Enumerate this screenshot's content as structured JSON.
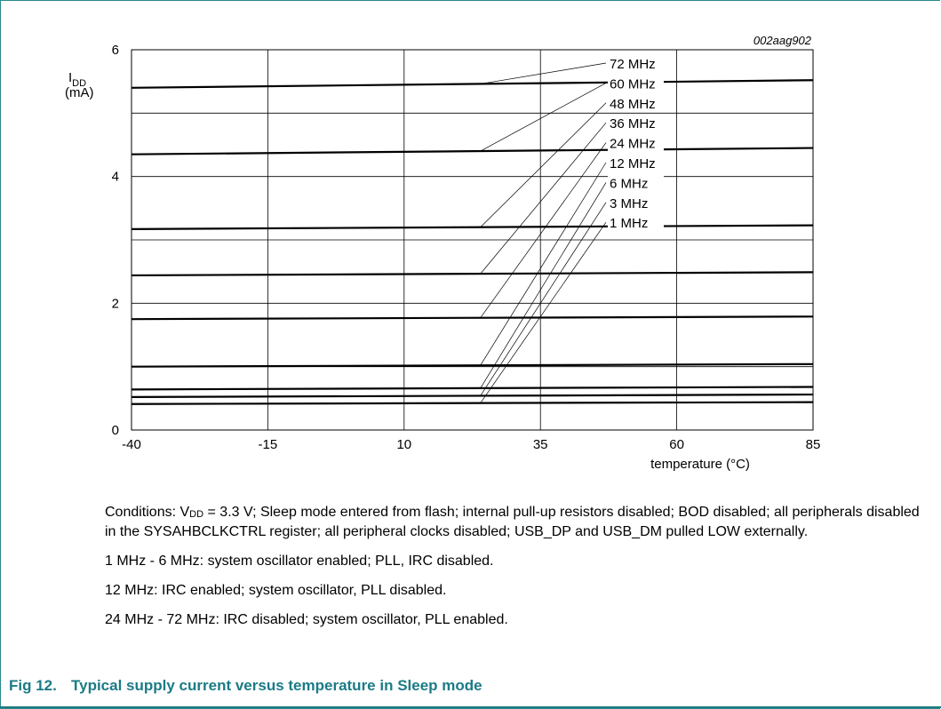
{
  "chart_data": {
    "type": "line",
    "tag": "002aag902",
    "ylabel_main": "I",
    "ylabel_sub": "DD",
    "ylabel_unit": "(mA)",
    "xlabel": "temperature (°C)",
    "x_ticks": [
      "-40",
      "-15",
      "10",
      "35",
      "60",
      "85"
    ],
    "y_ticks": [
      "0",
      "2",
      "4",
      "6"
    ],
    "xlim": [
      -40,
      85
    ],
    "ylim": [
      0,
      6
    ],
    "grid": true,
    "x": [
      -40,
      85
    ],
    "series": [
      {
        "name": "72 MHz",
        "values": [
          5.4,
          5.52
        ]
      },
      {
        "name": "60 MHz",
        "values": [
          4.35,
          4.45
        ]
      },
      {
        "name": "48 MHz",
        "values": [
          3.17,
          3.23
        ]
      },
      {
        "name": "36 MHz",
        "values": [
          2.44,
          2.49
        ]
      },
      {
        "name": "24 MHz",
        "values": [
          1.75,
          1.79
        ]
      },
      {
        "name": "12 MHz",
        "values": [
          1.0,
          1.04
        ]
      },
      {
        "name": "6 MHz",
        "values": [
          0.64,
          0.68
        ]
      },
      {
        "name": "3 MHz",
        "values": [
          0.52,
          0.56
        ]
      },
      {
        "name": "1 MHz",
        "values": [
          0.41,
          0.44
        ]
      }
    ]
  },
  "notes": {
    "cond_prefix": "Conditions: V",
    "cond_sub": "DD",
    "cond_rest": " = 3.3 V; Sleep mode entered from flash; internal pull-up resistors disabled; BOD disabled; all peripherals disabled in the SYSAHBCLKCTRL register; all peripheral clocks disabled; USB_DP and USB_DM pulled LOW externally.",
    "line1": "1 MHz - 6 MHz: system oscillator enabled; PLL, IRC disabled.",
    "line2": "12 MHz: IRC enabled; system oscillator, PLL disabled.",
    "line3": "24 MHz - 72 MHz: IRC disabled; system oscillator, PLL enabled."
  },
  "caption": {
    "number": "Fig 12.",
    "title": "Typical supply current versus temperature in Sleep mode"
  }
}
